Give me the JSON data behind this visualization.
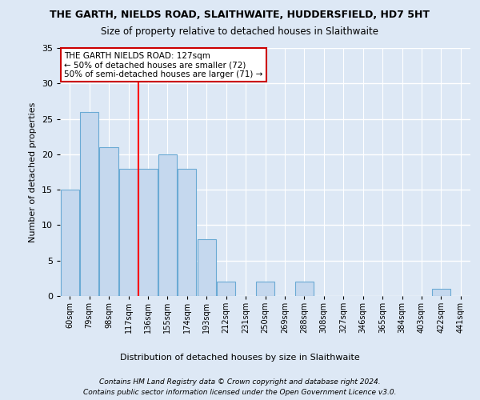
{
  "title1": "THE GARTH, NIELDS ROAD, SLAITHWAITE, HUDDERSFIELD, HD7 5HT",
  "title2": "Size of property relative to detached houses in Slaithwaite",
  "xlabel": "Distribution of detached houses by size in Slaithwaite",
  "ylabel": "Number of detached properties",
  "bin_labels": [
    "60sqm",
    "79sqm",
    "98sqm",
    "117sqm",
    "136sqm",
    "155sqm",
    "174sqm",
    "193sqm",
    "212sqm",
    "231sqm",
    "250sqm",
    "269sqm",
    "288sqm",
    "308sqm",
    "327sqm",
    "346sqm",
    "365sqm",
    "384sqm",
    "403sqm",
    "422sqm",
    "441sqm"
  ],
  "bin_starts": [
    60,
    79,
    98,
    117,
    136,
    155,
    174,
    193,
    212,
    231,
    250,
    269,
    288,
    308,
    327,
    346,
    365,
    384,
    403,
    422,
    441
  ],
  "bin_width": 19,
  "counts": [
    15,
    26,
    21,
    18,
    18,
    20,
    18,
    8,
    2,
    0,
    2,
    0,
    2,
    0,
    0,
    0,
    0,
    0,
    0,
    1,
    0
  ],
  "bar_color": "#c5d8ee",
  "bar_edge_color": "#6aaad4",
  "red_line_x": 127,
  "annotation_text": "THE GARTH NIELDS ROAD: 127sqm\n← 50% of detached houses are smaller (72)\n50% of semi-detached houses are larger (71) →",
  "annotation_box_color": "#ffffff",
  "annotation_box_edge": "#cc0000",
  "ylim": [
    0,
    35
  ],
  "yticks": [
    0,
    5,
    10,
    15,
    20,
    25,
    30,
    35
  ],
  "footer1": "Contains HM Land Registry data © Crown copyright and database right 2024.",
  "footer2": "Contains public sector information licensed under the Open Government Licence v3.0.",
  "bg_color": "#dde8f5",
  "plot_bg_color": "#dde8f5",
  "grid_color": "#ffffff"
}
